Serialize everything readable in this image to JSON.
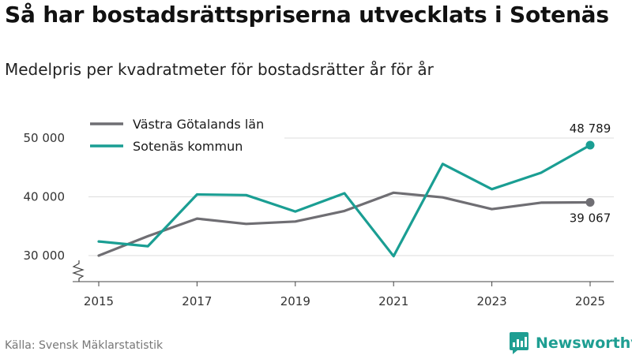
{
  "header": {
    "title": "Så har bostadsrättspriserna utvecklats i Sotenäs",
    "subtitle": "Medelpris per kvadratmeter för bostadsrätter år för år"
  },
  "footer": {
    "source": "Källa: Svensk Mäklarstatistik",
    "brand": "Newsworthy"
  },
  "colors": {
    "vastra_gotaland": "#6f6e73",
    "sotenas": "#1a9e93",
    "grid": "#dddddd",
    "brand": "#1e9e92"
  },
  "chart_data": {
    "type": "line",
    "title": "Så har bostadsrättspriserna utvecklats i Sotenäs",
    "subtitle": "Medelpris per kvadratmeter för bostadsrätter år för år",
    "xlabel": "",
    "ylabel": "",
    "x": [
      2015,
      2016,
      2017,
      2018,
      2019,
      2020,
      2021,
      2022,
      2023,
      2024,
      2025
    ],
    "xticks": [
      "2015",
      "2017",
      "2019",
      "2021",
      "2023",
      "2025"
    ],
    "ylim": [
      26000,
      52000
    ],
    "yticks": [
      {
        "value": 30000,
        "label": "30 000"
      },
      {
        "value": 40000,
        "label": "40 000"
      },
      {
        "value": 50000,
        "label": "50 000"
      }
    ],
    "axis_break": true,
    "grid": true,
    "legend_position": "top-left",
    "series": [
      {
        "name": "Västra Götalands län",
        "color": "#6f6e73",
        "values": [
          30000,
          33300,
          36300,
          35400,
          35800,
          37600,
          40700,
          39900,
          37900,
          39000,
          39067
        ],
        "end_label": "39 067",
        "end_label_position": "below"
      },
      {
        "name": "Sotenäs kommun",
        "color": "#1a9e93",
        "values": [
          32400,
          31600,
          40400,
          40300,
          37500,
          40600,
          29900,
          45600,
          41300,
          44100,
          48789
        ],
        "end_label": "48 789",
        "end_label_position": "above"
      }
    ]
  }
}
